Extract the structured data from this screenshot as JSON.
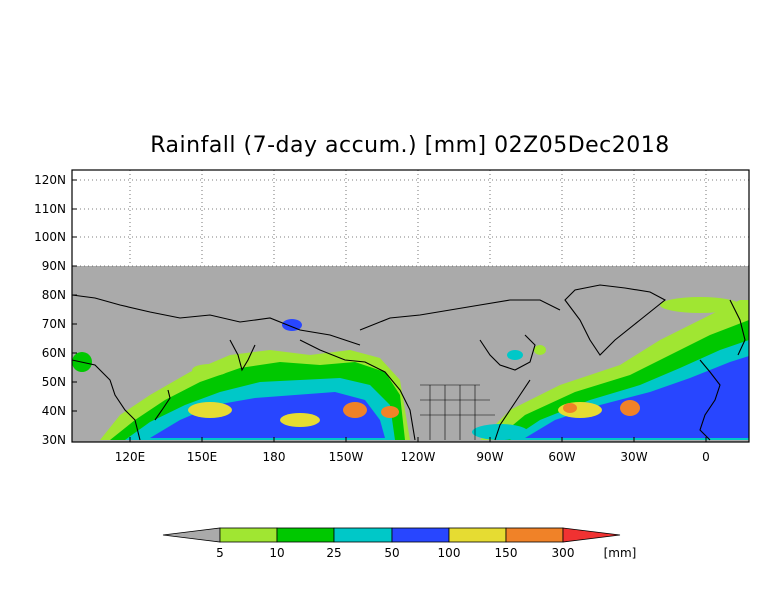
{
  "title": "Rainfall (7-day accum.) [mm] 02Z05Dec2018",
  "map": {
    "lat_labels": [
      "120N",
      "110N",
      "100N",
      "90N",
      "80N",
      "70N",
      "60N",
      "50N",
      "40N",
      "30N"
    ],
    "lon_labels": [
      "120E",
      "150E",
      "180",
      "150W",
      "120W",
      "90W",
      "60W",
      "30W",
      "0"
    ],
    "no_data_color": "#aaaaaa",
    "land_outline_color": "#000000"
  },
  "legend": {
    "labels": [
      "5",
      "10",
      "25",
      "50",
      "100",
      "150",
      "300"
    ],
    "units": "[mm]",
    "colors": [
      "#aaaaaa",
      "#a0e632",
      "#00c800",
      "#00c8c8",
      "#2846ff",
      "#e6dc32",
      "#f08228",
      "#f03232"
    ]
  }
}
